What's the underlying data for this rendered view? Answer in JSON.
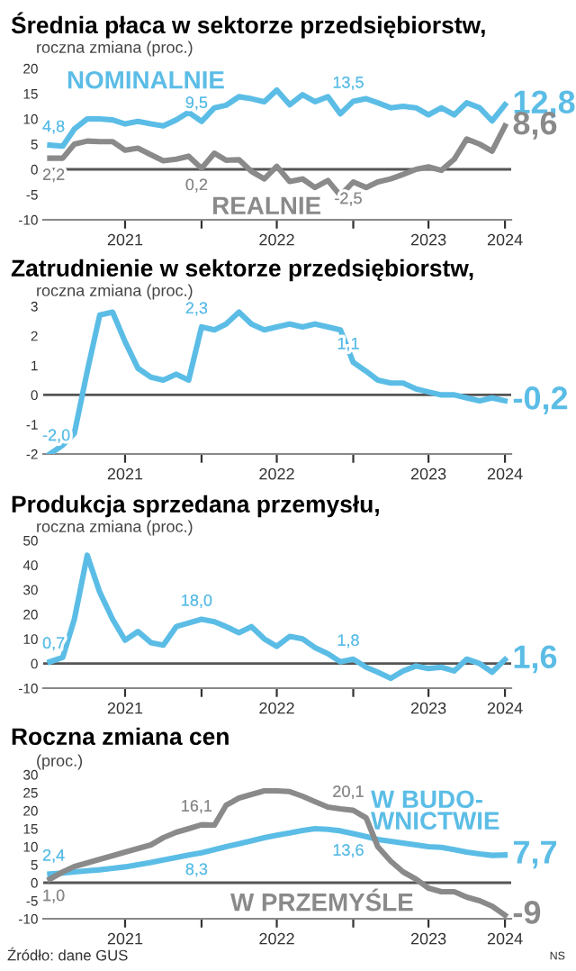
{
  "chart_data": [
    {
      "type": "line",
      "title": "Średnia płaca w sektorze przedsiębiorstw,",
      "subtitle": "roczna zmiana (proc.)",
      "x": [
        "2021-01",
        "2021-02",
        "2021-03",
        "2021-04",
        "2021-05",
        "2021-06",
        "2021-07",
        "2021-08",
        "2021-09",
        "2021-10",
        "2021-11",
        "2021-12",
        "2022-01",
        "2022-02",
        "2022-03",
        "2022-04",
        "2022-05",
        "2022-06",
        "2022-07",
        "2022-08",
        "2022-09",
        "2022-10",
        "2022-11",
        "2022-12",
        "2023-01",
        "2023-02",
        "2023-03",
        "2023-04",
        "2023-05",
        "2023-06",
        "2023-07",
        "2023-08",
        "2023-09",
        "2023-10",
        "2023-11",
        "2023-12",
        "2024-01"
      ],
      "series": [
        {
          "name": "NOMINALNIE",
          "color": "#5bbde6",
          "values": [
            4.8,
            4.6,
            8,
            10,
            10,
            9.8,
            9,
            9.5,
            9,
            8.6,
            9.8,
            11.3,
            9.5,
            12.2,
            12.7,
            14.4,
            14,
            13.4,
            15.7,
            12.8,
            14.8,
            13.4,
            14.4,
            11,
            13.5,
            14,
            13.2,
            12.2,
            12.5,
            12.2,
            10.8,
            12.2,
            10.8,
            13.2,
            12.2,
            9.6,
            12.8
          ],
          "value_labels": [
            "4,8",
            null,
            null,
            null,
            null,
            null,
            null,
            null,
            null,
            null,
            null,
            null,
            "9,5",
            null,
            null,
            null,
            null,
            null,
            null,
            null,
            null,
            null,
            null,
            null,
            "13,5",
            null,
            null,
            null,
            null,
            null,
            null,
            null,
            null,
            null,
            null,
            null,
            "12,8"
          ]
        },
        {
          "name": "REALNIE",
          "color": "#8a8a8a",
          "values": [
            2.2,
            2.2,
            5,
            5.6,
            5.5,
            5.5,
            3.8,
            4.2,
            2.9,
            1.7,
            2.0,
            2.6,
            0.2,
            3.2,
            1.8,
            1.9,
            -0.4,
            -1.9,
            0.6,
            -2.4,
            -1.9,
            -3.6,
            -2.2,
            -5.2,
            -2.5,
            -3.6,
            -2.5,
            -1.9,
            -1.0,
            0.0,
            0.5,
            -0.2,
            2.0,
            6.0,
            5.0,
            3.6,
            8.6
          ],
          "value_labels": [
            "2,2",
            null,
            null,
            null,
            null,
            null,
            null,
            null,
            null,
            null,
            null,
            null,
            "0,2",
            null,
            null,
            null,
            null,
            null,
            null,
            null,
            null,
            null,
            null,
            null,
            "-2,5",
            null,
            null,
            null,
            null,
            null,
            null,
            null,
            null,
            null,
            null,
            null,
            "8,6"
          ]
        }
      ],
      "xlim": [
        "2020-12-16",
        "2024-01-16"
      ],
      "xticks": [
        {
          "value": "2021-07-01",
          "label": "2021"
        },
        {
          "value": "2022-01-01",
          "label": null
        },
        {
          "value": "2022-07-01",
          "label": "2022"
        },
        {
          "value": "2023-01-01",
          "label": null
        },
        {
          "value": "2023-07-01",
          "label": "2023"
        },
        {
          "value": "2024-01-01",
          "label": "2024"
        }
      ],
      "ylim": [
        -10,
        20
      ],
      "yticks": [
        -10,
        -5,
        0,
        5,
        10,
        15,
        20
      ],
      "ref_lines": [
        {
          "axis": "y",
          "value": 0,
          "color": "#555555"
        }
      ],
      "grid": false,
      "legend": false
    },
    {
      "type": "line",
      "title": "Zatrudnienie w sektorze przedsiębiorstw,",
      "subtitle": "roczna zmiana (proc.)",
      "x": [
        "2021-01",
        "2021-02",
        "2021-03",
        "2021-04",
        "2021-05",
        "2021-06",
        "2021-07",
        "2021-08",
        "2021-09",
        "2021-10",
        "2021-11",
        "2021-12",
        "2022-01",
        "2022-02",
        "2022-03",
        "2022-04",
        "2022-05",
        "2022-06",
        "2022-07",
        "2022-08",
        "2022-09",
        "2022-10",
        "2022-11",
        "2022-12",
        "2023-01",
        "2023-02",
        "2023-03",
        "2023-04",
        "2023-05",
        "2023-06",
        "2023-07",
        "2023-08",
        "2023-09",
        "2023-10",
        "2023-11",
        "2023-12",
        "2024-01"
      ],
      "series": [
        {
          "color": "#5bbde6",
          "values": [
            -2.0,
            -1.7,
            -1.3,
            0.8,
            2.7,
            2.8,
            1.8,
            0.9,
            0.6,
            0.5,
            0.7,
            0.5,
            2.3,
            2.2,
            2.4,
            2.8,
            2.4,
            2.2,
            2.3,
            2.4,
            2.3,
            2.4,
            2.3,
            2.2,
            1.1,
            0.8,
            0.5,
            0.4,
            0.4,
            0.2,
            0.1,
            0.0,
            0.0,
            -0.1,
            -0.2,
            -0.1,
            -0.2
          ],
          "value_labels": [
            "-2,0",
            null,
            null,
            null,
            null,
            null,
            null,
            null,
            null,
            null,
            null,
            null,
            "2,3",
            null,
            null,
            null,
            null,
            null,
            null,
            null,
            null,
            null,
            null,
            null,
            "1,1",
            null,
            null,
            null,
            null,
            null,
            null,
            null,
            null,
            null,
            null,
            null,
            "-0,2"
          ]
        }
      ],
      "xlim": [
        "2020-12-16",
        "2024-01-16"
      ],
      "xticks": [
        {
          "value": "2021-07-01",
          "label": "2021"
        },
        {
          "value": "2022-01-01",
          "label": null
        },
        {
          "value": "2022-07-01",
          "label": "2022"
        },
        {
          "value": "2023-01-01",
          "label": null
        },
        {
          "value": "2023-07-01",
          "label": "2023"
        },
        {
          "value": "2024-01-01",
          "label": "2024"
        }
      ],
      "ylim": [
        -2,
        3
      ],
      "yticks": [
        -2,
        -1,
        0,
        1,
        2,
        3
      ],
      "ref_lines": [
        {
          "axis": "y",
          "value": 0,
          "color": "#555555"
        }
      ],
      "grid": false,
      "legend": false
    },
    {
      "type": "line",
      "title": "Produkcja sprzedana przemysłu,",
      "subtitle": "roczna zmiana (proc.)",
      "x": [
        "2021-01",
        "2021-02",
        "2021-03",
        "2021-04",
        "2021-05",
        "2021-06",
        "2021-07",
        "2021-08",
        "2021-09",
        "2021-10",
        "2021-11",
        "2021-12",
        "2022-01",
        "2022-02",
        "2022-03",
        "2022-04",
        "2022-05",
        "2022-06",
        "2022-07",
        "2022-08",
        "2022-09",
        "2022-10",
        "2022-11",
        "2022-12",
        "2023-01",
        "2023-02",
        "2023-03",
        "2023-04",
        "2023-05",
        "2023-06",
        "2023-07",
        "2023-08",
        "2023-09",
        "2023-10",
        "2023-11",
        "2023-12",
        "2024-01"
      ],
      "series": [
        {
          "color": "#5bbde6",
          "values": [
            0.7,
            2.5,
            18,
            44,
            29,
            18,
            9.5,
            13,
            8.5,
            7.5,
            15,
            16.5,
            18.0,
            17,
            15,
            12.5,
            15,
            10,
            7,
            11,
            10,
            6.5,
            4,
            0.7,
            1.8,
            -1.5,
            -3.5,
            -6,
            -3,
            -1,
            -2,
            -1.5,
            -3,
            1.8,
            0,
            -3.5,
            1.6
          ],
          "value_labels": [
            "0,7",
            null,
            null,
            null,
            null,
            null,
            null,
            null,
            null,
            null,
            null,
            null,
            "18,0",
            null,
            null,
            null,
            null,
            null,
            null,
            null,
            null,
            null,
            null,
            null,
            "1,8",
            null,
            null,
            null,
            null,
            null,
            null,
            null,
            null,
            null,
            null,
            null,
            "1,6"
          ]
        }
      ],
      "xlim": [
        "2020-12-16",
        "2024-01-16"
      ],
      "xticks": [
        {
          "value": "2021-07-01",
          "label": "2021"
        },
        {
          "value": "2022-01-01",
          "label": null
        },
        {
          "value": "2022-07-01",
          "label": "2022"
        },
        {
          "value": "2023-01-01",
          "label": null
        },
        {
          "value": "2023-07-01",
          "label": "2023"
        },
        {
          "value": "2024-01-01",
          "label": "2024"
        }
      ],
      "ylim": [
        -10,
        50
      ],
      "yticks": [
        -10,
        0,
        10,
        20,
        30,
        40,
        50
      ],
      "ref_lines": [
        {
          "axis": "y",
          "value": 0,
          "color": "#555555"
        }
      ],
      "grid": false,
      "legend": false
    },
    {
      "type": "line",
      "title": "Roczna zmiana cen",
      "subtitle": "(proc.)",
      "x": [
        "2021-01",
        "2021-02",
        "2021-03",
        "2021-04",
        "2021-05",
        "2021-06",
        "2021-07",
        "2021-08",
        "2021-09",
        "2021-10",
        "2021-11",
        "2021-12",
        "2022-01",
        "2022-02",
        "2022-03",
        "2022-04",
        "2022-05",
        "2022-06",
        "2022-07",
        "2022-08",
        "2022-09",
        "2022-10",
        "2022-11",
        "2022-12",
        "2023-01",
        "2023-02",
        "2023-03",
        "2023-04",
        "2023-05",
        "2023-06",
        "2023-07",
        "2023-08",
        "2023-09",
        "2023-10",
        "2023-11",
        "2023-12",
        "2024-01"
      ],
      "series": [
        {
          "name": "W BUDO-\nWNICTWIE",
          "color": "#5bbde6",
          "values": [
            2.4,
            2.7,
            3,
            3.3,
            3.6,
            4,
            4.4,
            5,
            5.6,
            6.3,
            7,
            7.7,
            8.3,
            9.2,
            10,
            10.8,
            11.6,
            12.5,
            13.2,
            13.8,
            14.5,
            15,
            14.8,
            14.4,
            13.6,
            12.8,
            12,
            11.5,
            11,
            10.5,
            10,
            9.8,
            9.2,
            8.5,
            8,
            7.6,
            7.7
          ],
          "value_labels": [
            "2,4",
            null,
            null,
            null,
            null,
            null,
            null,
            null,
            null,
            null,
            null,
            null,
            "8,3",
            null,
            null,
            null,
            null,
            null,
            null,
            null,
            null,
            null,
            null,
            null,
            "13,6",
            null,
            null,
            null,
            null,
            null,
            null,
            null,
            null,
            null,
            null,
            null,
            "7,7"
          ]
        },
        {
          "name": "W PRZEMYŚLE",
          "color": "#8a8a8a",
          "values": [
            1.0,
            3,
            4.5,
            5.5,
            6.5,
            7.5,
            8.5,
            9.5,
            10.5,
            12.5,
            14,
            15,
            16.1,
            16.0,
            21.5,
            23.5,
            24.5,
            25.5,
            25.5,
            25.3,
            24,
            22.5,
            21,
            20.5,
            20.1,
            18,
            10,
            6,
            3,
            1,
            -1.5,
            -2.5,
            -2.5,
            -4,
            -5,
            -6.5,
            -9
          ],
          "value_labels": [
            "1,0",
            null,
            null,
            null,
            null,
            null,
            null,
            null,
            null,
            null,
            null,
            null,
            "16,1",
            null,
            null,
            null,
            null,
            null,
            null,
            null,
            null,
            null,
            null,
            null,
            "20,1",
            null,
            null,
            null,
            null,
            null,
            null,
            null,
            null,
            null,
            null,
            null,
            "-9"
          ]
        }
      ],
      "xlim": [
        "2020-12-16",
        "2024-01-16"
      ],
      "xticks": [
        {
          "value": "2021-07-01",
          "label": "2021"
        },
        {
          "value": "2022-01-01",
          "label": null
        },
        {
          "value": "2022-07-01",
          "label": "2022"
        },
        {
          "value": "2023-01-01",
          "label": null
        },
        {
          "value": "2023-07-01",
          "label": "2023"
        },
        {
          "value": "2024-01-01",
          "label": "2024"
        }
      ],
      "ylim": [
        -10,
        30
      ],
      "yticks": [
        -10,
        -5,
        0,
        5,
        10,
        15,
        20,
        25,
        30
      ],
      "ref_lines": [
        {
          "axis": "y",
          "value": 0,
          "color": "#555555"
        }
      ],
      "grid": false,
      "legend": false,
      "annotations": [
        "Źródło: dane GUS",
        "NS"
      ]
    }
  ]
}
